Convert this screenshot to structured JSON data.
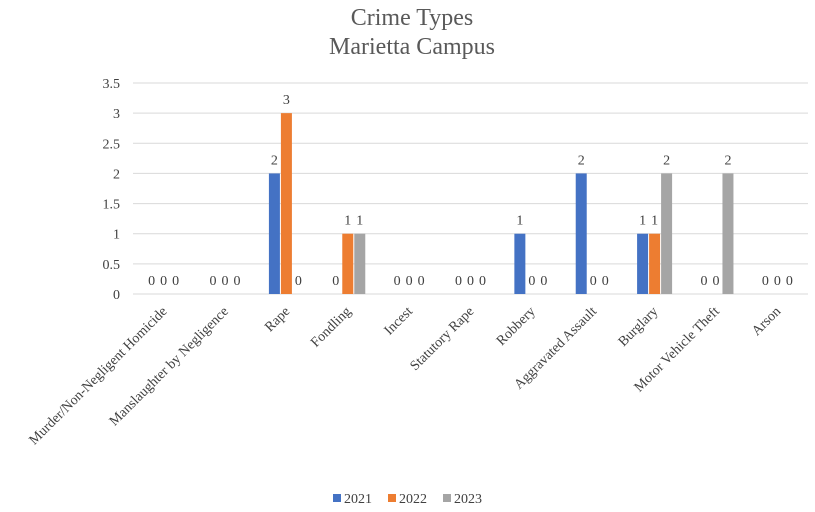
{
  "chart_data": {
    "type": "bar",
    "title": "Crime Types",
    "subtitle": "Marietta Campus",
    "categories": [
      "Murder/Non-Negligent Homicide",
      "Manslaughter by Negligence",
      "Rape",
      "Fondling",
      "Incest",
      "Statutory Rape",
      "Robbery",
      "Aggravated Assault",
      "Burglary",
      "Motor Vehicle Theft",
      "Arson"
    ],
    "series": [
      {
        "name": "2021",
        "color": "#4472C4",
        "values": [
          0,
          0,
          2,
          0,
          0,
          0,
          1,
          2,
          1,
          0,
          0
        ]
      },
      {
        "name": "2022",
        "color": "#ED7D31",
        "values": [
          0,
          0,
          3,
          1,
          0,
          0,
          0,
          0,
          1,
          0,
          0
        ]
      },
      {
        "name": "2023",
        "color": "#A5A5A5",
        "values": [
          0,
          0,
          0,
          1,
          0,
          0,
          0,
          0,
          2,
          2,
          0
        ]
      }
    ],
    "xlabel": "",
    "ylabel": "",
    "ylim": [
      0,
      3.5
    ],
    "yticks": [
      "0",
      "0.5",
      "1",
      "1.5",
      "2",
      "2.5",
      "3",
      "3.5"
    ],
    "grid": true,
    "legend": "bottom"
  }
}
